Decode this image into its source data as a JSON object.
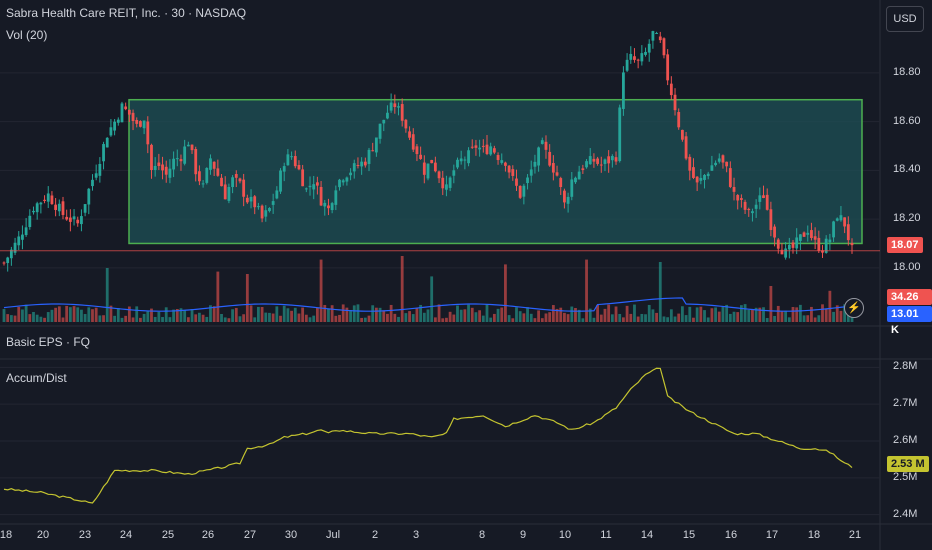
{
  "header": {
    "title": "Sabra Health Care REIT, Inc. · 30 · NASDAQ",
    "volume_label": "Vol (20)",
    "currency_button": "USD"
  },
  "panes": {
    "eps_label": "Basic EPS · FQ",
    "accum_label": "Accum/Dist"
  },
  "badges": {
    "last_price": "18.07",
    "volume_value": "34.26 K",
    "volume_ma": "13.01 K",
    "ad_value": "2.53 M",
    "bolt_icon": "lightning-icon"
  },
  "colors": {
    "up": "#26a69a",
    "down": "#ef5350",
    "rect_border": "#4caf50",
    "rect_fill": "#1d5055",
    "vol_ma": "#2962ff",
    "ad_line": "#c4c430",
    "last_price_line": "#ef5350"
  },
  "chart_data": [
    {
      "type": "candlestick",
      "title": "Sabra Health Care REIT, Inc. · 30 · NASDAQ",
      "ylim": [
        17.95,
        19.05
      ],
      "y_ticks": [
        "18.00",
        "18.20",
        "18.40",
        "18.60",
        "18.80"
      ],
      "y_tick_values": [
        18.0,
        18.2,
        18.4,
        18.6,
        18.8
      ],
      "x_tick_labels": [
        "18",
        "20",
        "23",
        "24",
        "25",
        "26",
        "27",
        "30",
        "Jul",
        "2",
        "3",
        "8",
        "9",
        "10",
        "11",
        "14",
        "15",
        "16",
        "17",
        "18",
        "21"
      ],
      "range_box": {
        "low": 18.1,
        "high": 18.69,
        "from": "24",
        "to": "21"
      },
      "last_price": 18.07,
      "close_path": [
        [
          0,
          18.02
        ],
        [
          4,
          18.12
        ],
        [
          8,
          18.25
        ],
        [
          12,
          18.3
        ],
        [
          16,
          18.22
        ],
        [
          20,
          18.18
        ],
        [
          23,
          18.32
        ],
        [
          26,
          18.45
        ],
        [
          28,
          18.55
        ],
        [
          30,
          18.6
        ],
        [
          32,
          18.66
        ],
        [
          34,
          18.63
        ],
        [
          36,
          18.58
        ],
        [
          38,
          18.62
        ],
        [
          40,
          18.4
        ],
        [
          42,
          18.42
        ],
        [
          44,
          18.38
        ],
        [
          46,
          18.44
        ],
        [
          48,
          18.46
        ],
        [
          50,
          18.52
        ],
        [
          52,
          18.4
        ],
        [
          54,
          18.33
        ],
        [
          56,
          18.45
        ],
        [
          58,
          18.38
        ],
        [
          60,
          18.3
        ],
        [
          62,
          18.36
        ],
        [
          64,
          18.34
        ],
        [
          66,
          18.28
        ],
        [
          68,
          18.26
        ],
        [
          70,
          18.2
        ],
        [
          72,
          18.24
        ],
        [
          74,
          18.32
        ],
        [
          76,
          18.44
        ],
        [
          78,
          18.46
        ],
        [
          80,
          18.4
        ],
        [
          82,
          18.32
        ],
        [
          84,
          18.36
        ],
        [
          86,
          18.28
        ],
        [
          88,
          18.24
        ],
        [
          90,
          18.34
        ],
        [
          92,
          18.38
        ],
        [
          94,
          18.4
        ],
        [
          96,
          18.42
        ],
        [
          98,
          18.44
        ],
        [
          100,
          18.5
        ],
        [
          102,
          18.58
        ],
        [
          104,
          18.64
        ],
        [
          106,
          18.67
        ],
        [
          108,
          18.62
        ],
        [
          110,
          18.54
        ],
        [
          112,
          18.48
        ],
        [
          114,
          18.4
        ],
        [
          116,
          18.44
        ],
        [
          118,
          18.38
        ],
        [
          120,
          18.32
        ],
        [
          122,
          18.4
        ],
        [
          124,
          18.44
        ],
        [
          126,
          18.46
        ],
        [
          128,
          18.5
        ],
        [
          130,
          18.48
        ],
        [
          132,
          18.5
        ],
        [
          134,
          18.46
        ],
        [
          136,
          18.44
        ],
        [
          138,
          18.36
        ],
        [
          140,
          18.3
        ],
        [
          142,
          18.36
        ],
        [
          144,
          18.44
        ],
        [
          146,
          18.5
        ],
        [
          148,
          18.44
        ],
        [
          150,
          18.38
        ],
        [
          152,
          18.26
        ],
        [
          154,
          18.36
        ],
        [
          156,
          18.4
        ],
        [
          158,
          18.43
        ],
        [
          160,
          18.44
        ],
        [
          162,
          18.42
        ],
        [
          164,
          18.44
        ],
        [
          166,
          18.46
        ],
        [
          168,
          18.82
        ],
        [
          170,
          18.86
        ],
        [
          172,
          18.84
        ],
        [
          174,
          18.88
        ],
        [
          176,
          18.96
        ],
        [
          178,
          18.92
        ],
        [
          180,
          18.78
        ],
        [
          182,
          18.66
        ],
        [
          184,
          18.52
        ],
        [
          186,
          18.4
        ],
        [
          188,
          18.34
        ],
        [
          190,
          18.38
        ],
        [
          192,
          18.42
        ],
        [
          194,
          18.45
        ],
        [
          196,
          18.4
        ],
        [
          198,
          18.3
        ],
        [
          200,
          18.26
        ],
        [
          202,
          18.22
        ],
        [
          204,
          18.26
        ],
        [
          206,
          18.3
        ],
        [
          208,
          18.18
        ],
        [
          210,
          18.1
        ],
        [
          212,
          18.06
        ],
        [
          214,
          18.08
        ],
        [
          216,
          18.12
        ],
        [
          218,
          18.16
        ],
        [
          220,
          18.1
        ],
        [
          222,
          18.08
        ],
        [
          224,
          18.12
        ],
        [
          226,
          18.22
        ],
        [
          228,
          18.18
        ],
        [
          230,
          18.07
        ]
      ]
    },
    {
      "type": "bar",
      "title": "Vol (20)",
      "series": [
        {
          "name": "Vol (20)",
          "ma": 13010,
          "last": 34260
        }
      ],
      "spikes": [
        [
          28,
          45000
        ],
        [
          58,
          42000
        ],
        [
          66,
          40000
        ],
        [
          86,
          52000
        ],
        [
          108,
          55000
        ],
        [
          116,
          38000
        ],
        [
          136,
          48000
        ],
        [
          158,
          52000
        ],
        [
          178,
          50000
        ],
        [
          208,
          30000
        ],
        [
          224,
          26000
        ]
      ]
    },
    {
      "type": "line",
      "title": "Accum/Dist",
      "ylim": [
        2.38,
        2.82
      ],
      "y_ticks": [
        "2.4M",
        "2.5M",
        "2.6M",
        "2.7M",
        "2.8M"
      ],
      "y_tick_values": [
        2.4,
        2.5,
        2.6,
        2.7,
        2.8
      ],
      "last": 2.53,
      "path": [
        [
          0,
          2.47
        ],
        [
          10,
          2.46
        ],
        [
          20,
          2.44
        ],
        [
          24,
          2.43
        ],
        [
          30,
          2.52
        ],
        [
          40,
          2.52
        ],
        [
          50,
          2.51
        ],
        [
          60,
          2.53
        ],
        [
          64,
          2.54
        ],
        [
          66,
          2.58
        ],
        [
          72,
          2.59
        ],
        [
          76,
          2.61
        ],
        [
          82,
          2.62
        ],
        [
          86,
          2.63
        ],
        [
          88,
          2.62
        ],
        [
          90,
          2.63
        ],
        [
          100,
          2.62
        ],
        [
          110,
          2.62
        ],
        [
          116,
          2.61
        ],
        [
          120,
          2.62
        ],
        [
          122,
          2.66
        ],
        [
          130,
          2.67
        ],
        [
          136,
          2.64
        ],
        [
          144,
          2.67
        ],
        [
          150,
          2.65
        ],
        [
          154,
          2.63
        ],
        [
          160,
          2.65
        ],
        [
          166,
          2.69
        ],
        [
          170,
          2.74
        ],
        [
          174,
          2.78
        ],
        [
          178,
          2.8
        ],
        [
          180,
          2.72
        ],
        [
          186,
          2.68
        ],
        [
          192,
          2.65
        ],
        [
          198,
          2.62
        ],
        [
          204,
          2.62
        ],
        [
          210,
          2.6
        ],
        [
          216,
          2.58
        ],
        [
          220,
          2.58
        ],
        [
          224,
          2.57
        ],
        [
          228,
          2.54
        ],
        [
          230,
          2.53
        ]
      ]
    }
  ]
}
